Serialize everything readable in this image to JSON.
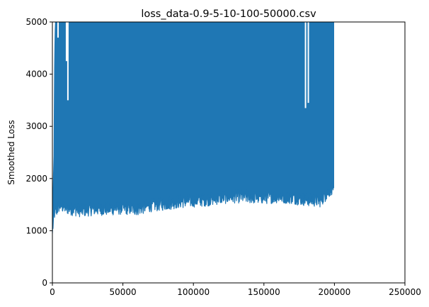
{
  "chart_data": {
    "type": "line",
    "title": "loss_data-0.9-5-10-100-50000.csv",
    "xlabel": "",
    "ylabel": "Smoothed Loss",
    "xlim": [
      0,
      250000
    ],
    "ylim": [
      0,
      5000
    ],
    "x_ticks": [
      "0",
      "50000",
      "100000",
      "150000",
      "200000",
      "250000"
    ],
    "y_ticks": [
      "0",
      "1000",
      "2000",
      "3000",
      "4000",
      "5000"
    ],
    "x_tick_values": [
      0,
      50000,
      100000,
      150000,
      200000,
      250000
    ],
    "y_tick_values": [
      0,
      1000,
      2000,
      3000,
      4000,
      5000
    ],
    "grid": false,
    "legend": "none",
    "series": [
      {
        "color": "#1f77b4",
        "x_range": [
          0,
          199500
        ],
        "upper_envelope": [
          [
            0,
            950
          ],
          [
            600,
            1900
          ],
          [
            1100,
            2400
          ],
          [
            1600,
            4300
          ],
          [
            2100,
            5000
          ],
          [
            199500,
            5000
          ]
        ],
        "lower_envelope": [
          [
            0,
            950
          ],
          [
            1500,
            1300
          ],
          [
            3000,
            1350
          ],
          [
            5000,
            1450
          ],
          [
            10000,
            1400
          ],
          [
            20000,
            1350
          ],
          [
            30000,
            1380
          ],
          [
            40000,
            1380
          ],
          [
            50000,
            1400
          ],
          [
            60000,
            1380
          ],
          [
            70000,
            1450
          ],
          [
            80000,
            1480
          ],
          [
            90000,
            1520
          ],
          [
            100000,
            1540
          ],
          [
            110000,
            1560
          ],
          [
            120000,
            1600
          ],
          [
            130000,
            1620
          ],
          [
            140000,
            1610
          ],
          [
            150000,
            1600
          ],
          [
            160000,
            1620
          ],
          [
            170000,
            1600
          ],
          [
            180000,
            1560
          ],
          [
            190000,
            1540
          ],
          [
            199500,
            1820
          ]
        ],
        "gaps": [
          {
            "x": [
              3500,
              4500
            ],
            "top": 4700
          },
          {
            "x": [
              9500,
              10500
            ],
            "top": 4250
          },
          {
            "x": [
              10500,
              11500
            ],
            "top": 3500
          },
          {
            "x": [
              179000,
              180000
            ],
            "top": 3350
          },
          {
            "x": [
              181000,
              182000
            ],
            "top": 3450
          }
        ]
      }
    ]
  }
}
